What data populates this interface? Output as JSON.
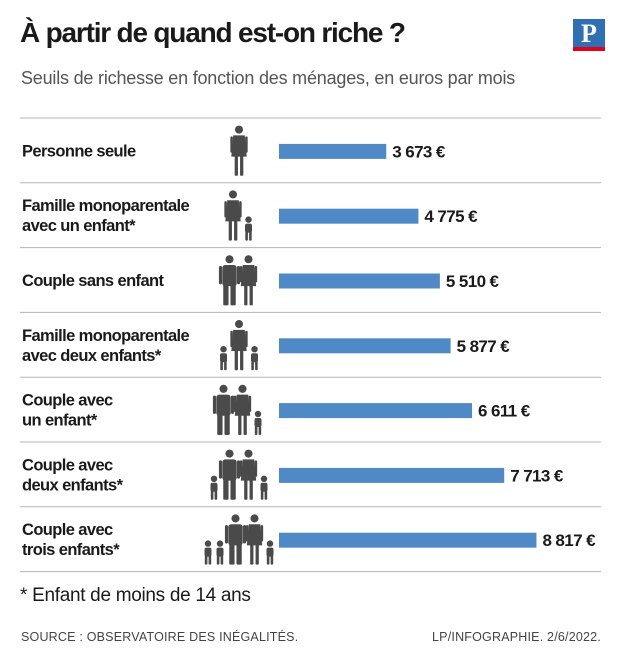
{
  "header": {
    "title": "À partir de quand est-on riche ?",
    "subtitle": "Seuils de richesse en fonction des ménages, en euros par mois",
    "logo_letter": "P"
  },
  "chart_data": {
    "type": "bar",
    "orientation": "horizontal",
    "title": "À partir de quand est-on riche ?",
    "subtitle": "Seuils de richesse en fonction des ménages, en euros par mois",
    "categories": [
      [
        "Personne seule"
      ],
      [
        "Famille monoparentale",
        "avec un enfant*"
      ],
      [
        "Couple sans enfant"
      ],
      [
        "Famille monoparentale",
        "avec deux enfants*"
      ],
      [
        "Couple avec",
        "un enfant*"
      ],
      [
        "Couple avec",
        "deux enfants*"
      ],
      [
        "Couple avec",
        "trois enfants*"
      ]
    ],
    "values": [
      3673,
      4775,
      5510,
      5877,
      6611,
      7713,
      8817
    ],
    "value_labels": [
      "3 673 €",
      "4 775 €",
      "5 510 €",
      "5 877 €",
      "6 611 €",
      "7 713 €",
      "8 817 €"
    ],
    "household_icons": [
      [
        "adult-female"
      ],
      [
        "adult-female",
        "child"
      ],
      [
        "adult-male",
        "adult-female"
      ],
      [
        "child",
        "adult-female",
        "child"
      ],
      [
        "adult-male",
        "adult-female",
        "child"
      ],
      [
        "child",
        "adult-male",
        "adult-female",
        "child"
      ],
      [
        "child",
        "child",
        "adult-male",
        "adult-female",
        "child"
      ]
    ],
    "xlabel": "",
    "ylabel": "",
    "unit": "euros par mois",
    "bar_color": "#4f8ac7"
  },
  "footer": {
    "footnote": "* Enfant de moins de 14 ans",
    "source": "SOURCE : OBSERVATOIRE DES INÉGALITÉS.",
    "credit": "LP/INFOGRAPHIE.  2/6/2022."
  },
  "colors": {
    "bar": "#4f8ac7",
    "logo_blue": "#2f6fb2",
    "logo_red": "#e2001a",
    "text": "#1a1a1a",
    "rule": "#b5b5b5",
    "icon": "#4a4a4a"
  }
}
